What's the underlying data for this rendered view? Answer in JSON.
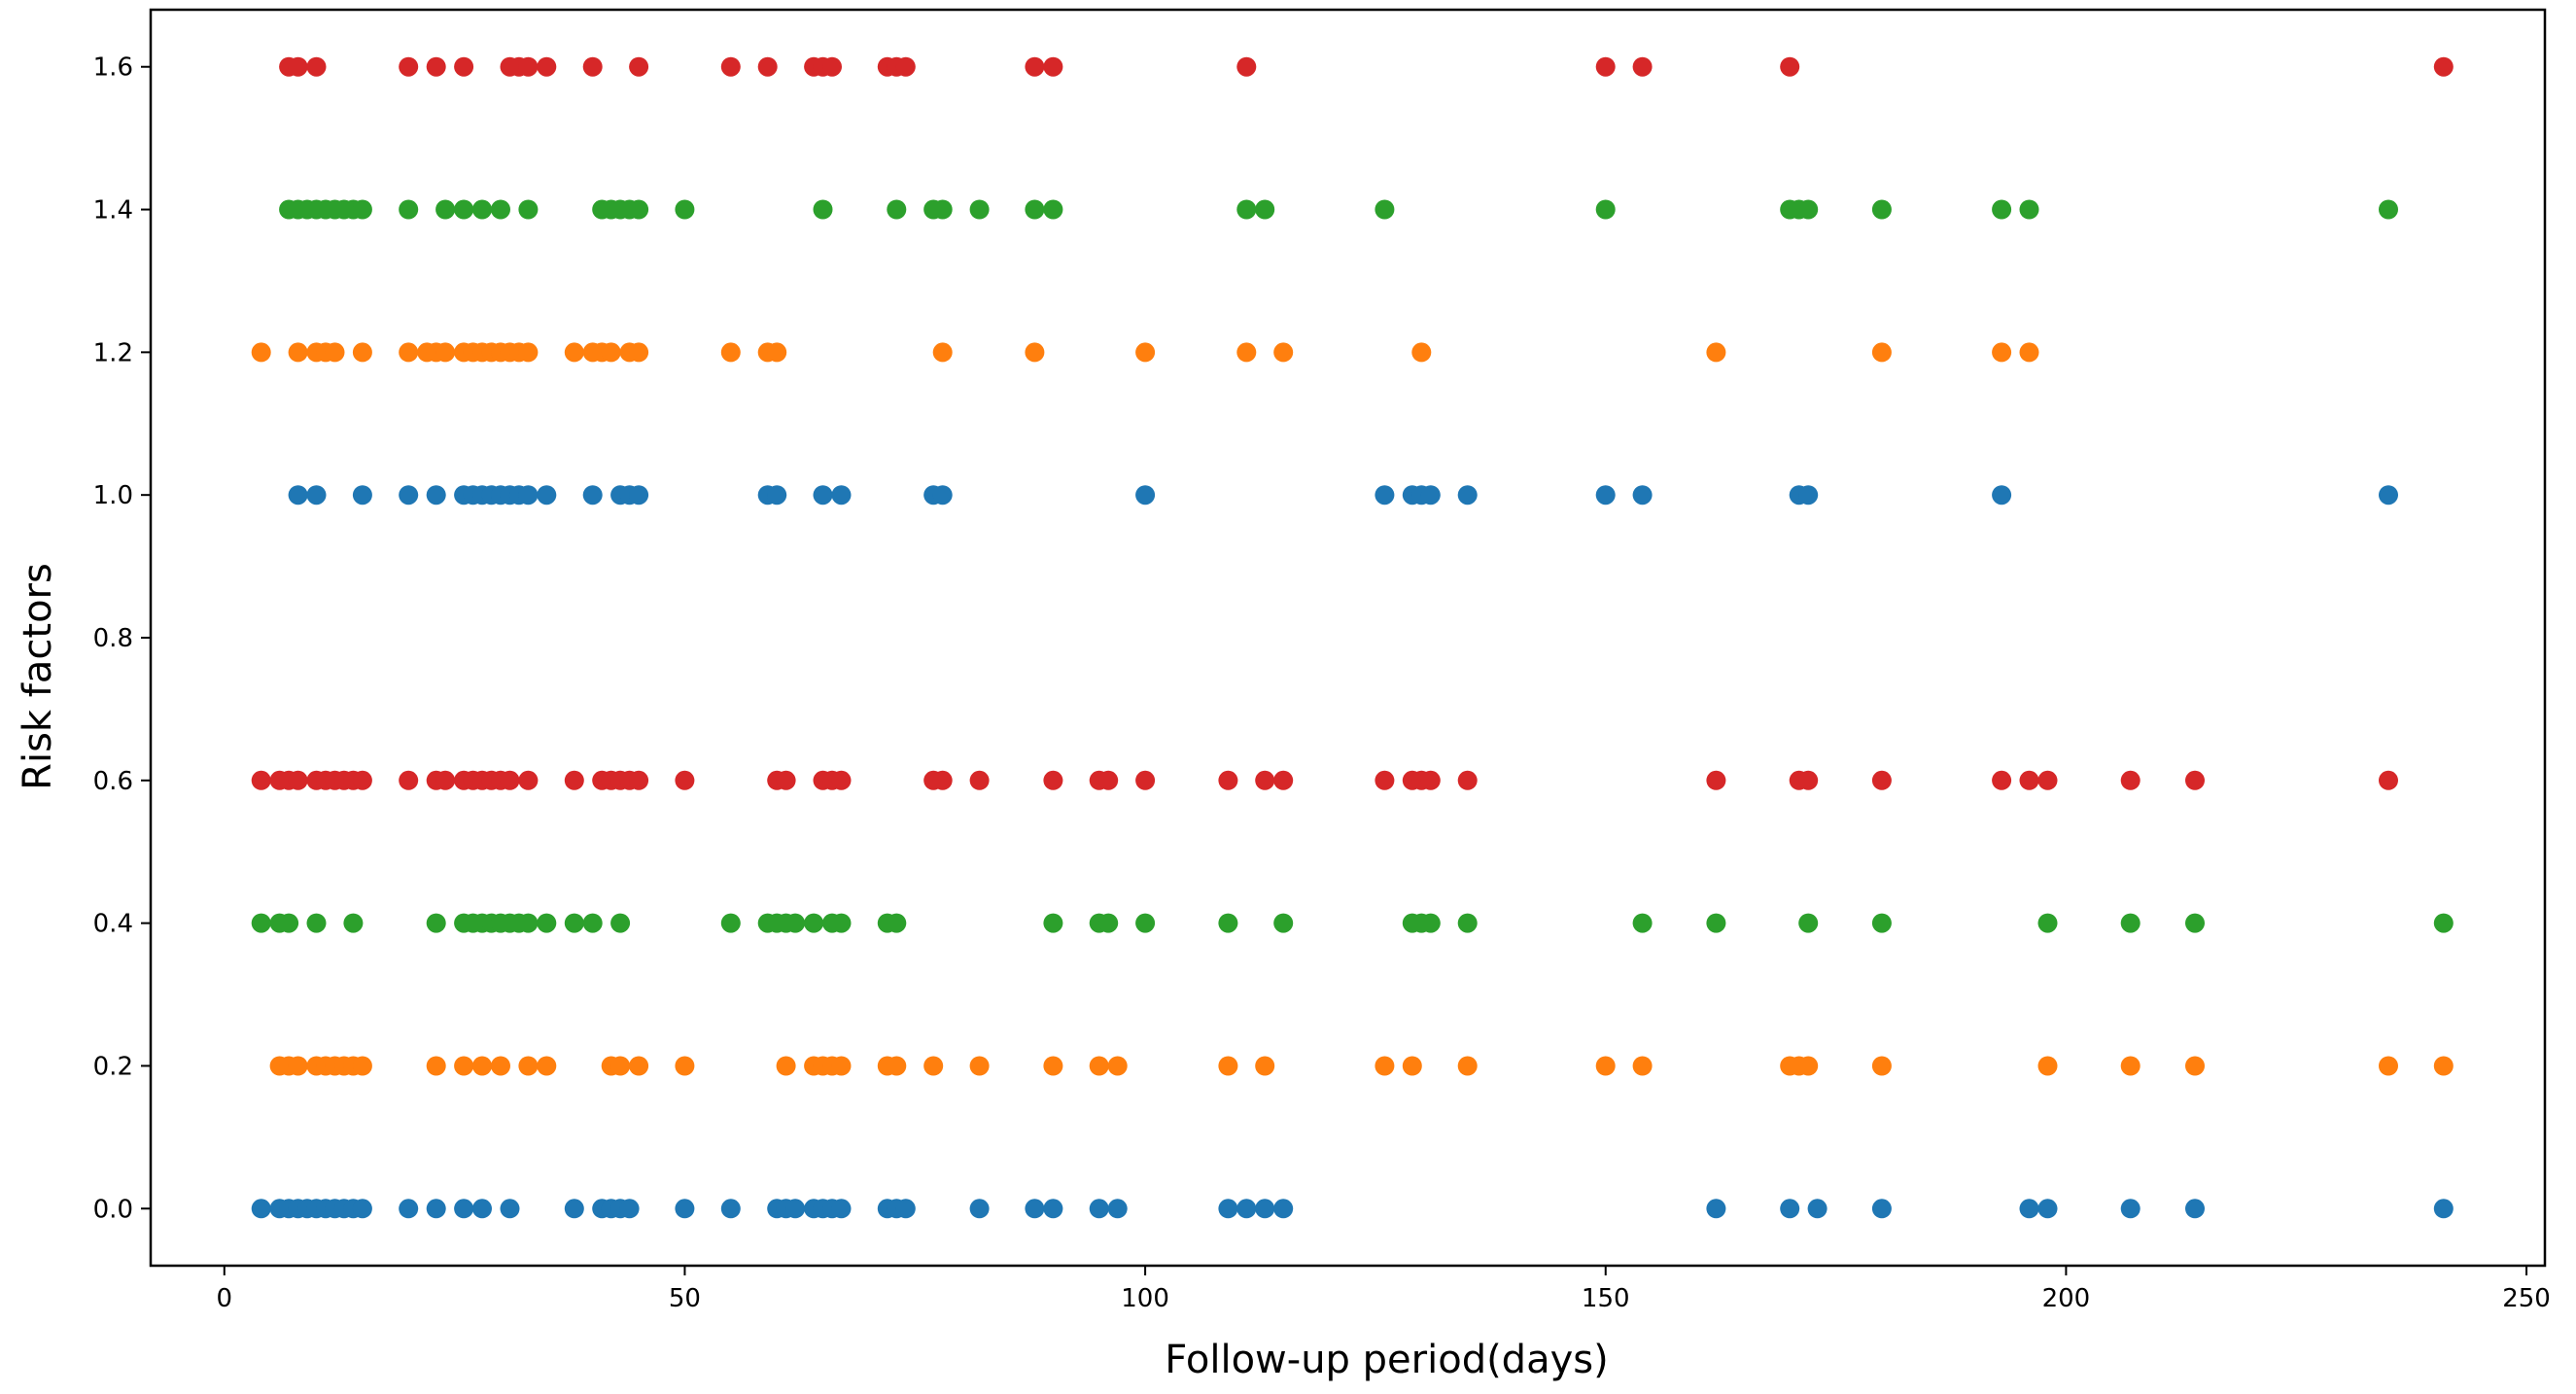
{
  "chart_data": {
    "type": "scatter",
    "title": "",
    "xlabel": "Follow-up period(days)",
    "ylabel": "Risk factors",
    "xlim": [
      -8,
      252
    ],
    "ylim": [
      -0.08,
      1.68
    ],
    "xticks": [
      0,
      50,
      100,
      150,
      200,
      250
    ],
    "yticks": [
      0.0,
      0.2,
      0.4,
      0.6,
      0.8,
      1.0,
      1.2,
      1.4,
      1.6
    ],
    "xtick_labels": [
      "0",
      "50",
      "100",
      "150",
      "200",
      "250"
    ],
    "ytick_labels": [
      "0.0",
      "0.2",
      "0.4",
      "0.6",
      "0.8",
      "1.0",
      "1.2",
      "1.4",
      "1.6"
    ],
    "grid": false,
    "legend": "none",
    "series": [
      {
        "name": "series-1-blue",
        "y": 0.0,
        "color": "#1f77b4",
        "x": [
          4,
          6,
          7,
          8,
          9,
          10,
          11,
          12,
          13,
          14,
          15,
          20,
          23,
          26,
          28,
          31,
          38,
          41,
          42,
          43,
          44,
          50,
          55,
          60,
          61,
          62,
          64,
          65,
          66,
          67,
          72,
          73,
          74,
          82,
          88,
          90,
          95,
          97,
          109,
          111,
          113,
          115,
          162,
          170,
          173,
          180,
          196,
          198,
          207,
          214,
          241
        ]
      },
      {
        "name": "series-2-orange",
        "y": 0.2,
        "color": "#ff7f0e",
        "x": [
          6,
          7,
          8,
          10,
          11,
          12,
          13,
          14,
          15,
          23,
          26,
          28,
          30,
          33,
          35,
          42,
          43,
          45,
          50,
          61,
          64,
          65,
          66,
          67,
          72,
          73,
          77,
          82,
          90,
          95,
          97,
          109,
          113,
          126,
          129,
          135,
          150,
          154,
          170,
          171,
          172,
          180,
          198,
          207,
          214,
          235,
          241
        ]
      },
      {
        "name": "series-3-green",
        "y": 0.4,
        "color": "#2ca02c",
        "x": [
          4,
          6,
          7,
          10,
          14,
          23,
          26,
          27,
          28,
          29,
          30,
          31,
          32,
          33,
          35,
          38,
          40,
          43,
          55,
          59,
          60,
          61,
          62,
          64,
          66,
          67,
          72,
          73,
          90,
          95,
          96,
          100,
          109,
          115,
          129,
          130,
          131,
          135,
          154,
          162,
          172,
          180,
          198,
          207,
          214,
          241
        ]
      },
      {
        "name": "series-4-red",
        "y": 0.6,
        "color": "#d62728",
        "x": [
          4,
          6,
          7,
          8,
          10,
          11,
          12,
          13,
          14,
          15,
          20,
          23,
          24,
          26,
          27,
          28,
          29,
          30,
          31,
          33,
          38,
          41,
          42,
          43,
          44,
          45,
          50,
          60,
          61,
          65,
          66,
          67,
          77,
          78,
          82,
          90,
          95,
          96,
          100,
          109,
          113,
          115,
          126,
          129,
          130,
          131,
          135,
          162,
          171,
          172,
          180,
          193,
          196,
          198,
          207,
          214,
          235
        ]
      },
      {
        "name": "series-5-blue",
        "y": 1.0,
        "color": "#1f77b4",
        "x": [
          8,
          10,
          15,
          20,
          23,
          26,
          27,
          28,
          29,
          30,
          31,
          32,
          33,
          35,
          40,
          43,
          44,
          45,
          59,
          60,
          65,
          67,
          77,
          78,
          100,
          126,
          129,
          130,
          131,
          135,
          150,
          154,
          171,
          172,
          193,
          235
        ]
      },
      {
        "name": "series-6-orange",
        "y": 1.2,
        "color": "#ff7f0e",
        "x": [
          4,
          8,
          10,
          11,
          12,
          15,
          20,
          22,
          23,
          24,
          26,
          27,
          28,
          29,
          30,
          31,
          32,
          33,
          38,
          40,
          41,
          42,
          44,
          45,
          55,
          59,
          60,
          78,
          88,
          100,
          111,
          115,
          130,
          162,
          180,
          193,
          196
        ]
      },
      {
        "name": "series-7-green",
        "y": 1.4,
        "color": "#2ca02c",
        "x": [
          7,
          8,
          9,
          10,
          11,
          12,
          13,
          14,
          15,
          20,
          24,
          26,
          28,
          30,
          33,
          41,
          42,
          43,
          44,
          45,
          50,
          65,
          73,
          77,
          78,
          82,
          88,
          90,
          111,
          113,
          126,
          150,
          170,
          171,
          172,
          180,
          193,
          196,
          235
        ]
      },
      {
        "name": "series-8-red",
        "y": 1.6,
        "color": "#d62728",
        "x": [
          7,
          8,
          10,
          20,
          23,
          26,
          31,
          32,
          33,
          35,
          40,
          45,
          55,
          59,
          64,
          65,
          66,
          72,
          73,
          74,
          88,
          90,
          111,
          150,
          154,
          170,
          241
        ]
      }
    ]
  }
}
